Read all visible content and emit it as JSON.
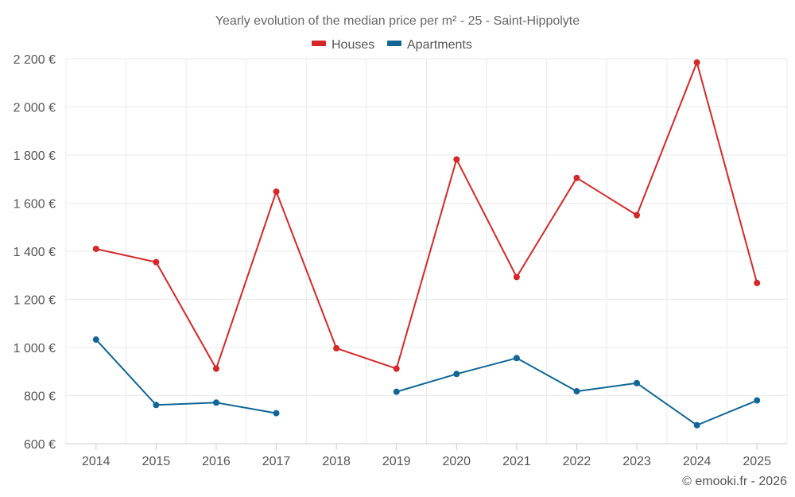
{
  "chart_data": {
    "type": "line",
    "title": "Yearly evolution of the median price per m² - 25 - Saint-Hippolyte",
    "categories": [
      "2014",
      "2015",
      "2016",
      "2017",
      "2018",
      "2019",
      "2020",
      "2021",
      "2022",
      "2023",
      "2024",
      "2025"
    ],
    "y_ticks": [
      "600 €",
      "800 €",
      "1 000 €",
      "1 200 €",
      "1 400 €",
      "1 600 €",
      "1 800 €",
      "2 000 €",
      "2 200 €"
    ],
    "ylim": [
      600,
      2200
    ],
    "series": [
      {
        "name": "Houses",
        "color": "#d62728",
        "values": [
          1410,
          1355,
          912,
          1648,
          997,
          912,
          1782,
          1293,
          1705,
          1550,
          2185,
          1268
        ]
      },
      {
        "name": "Apartments",
        "color": "#0f6697",
        "values": [
          1033,
          761,
          771,
          727,
          null,
          816,
          890,
          956,
          818,
          852,
          677,
          780
        ]
      }
    ],
    "credit": "© emooki.fr - 2026"
  }
}
